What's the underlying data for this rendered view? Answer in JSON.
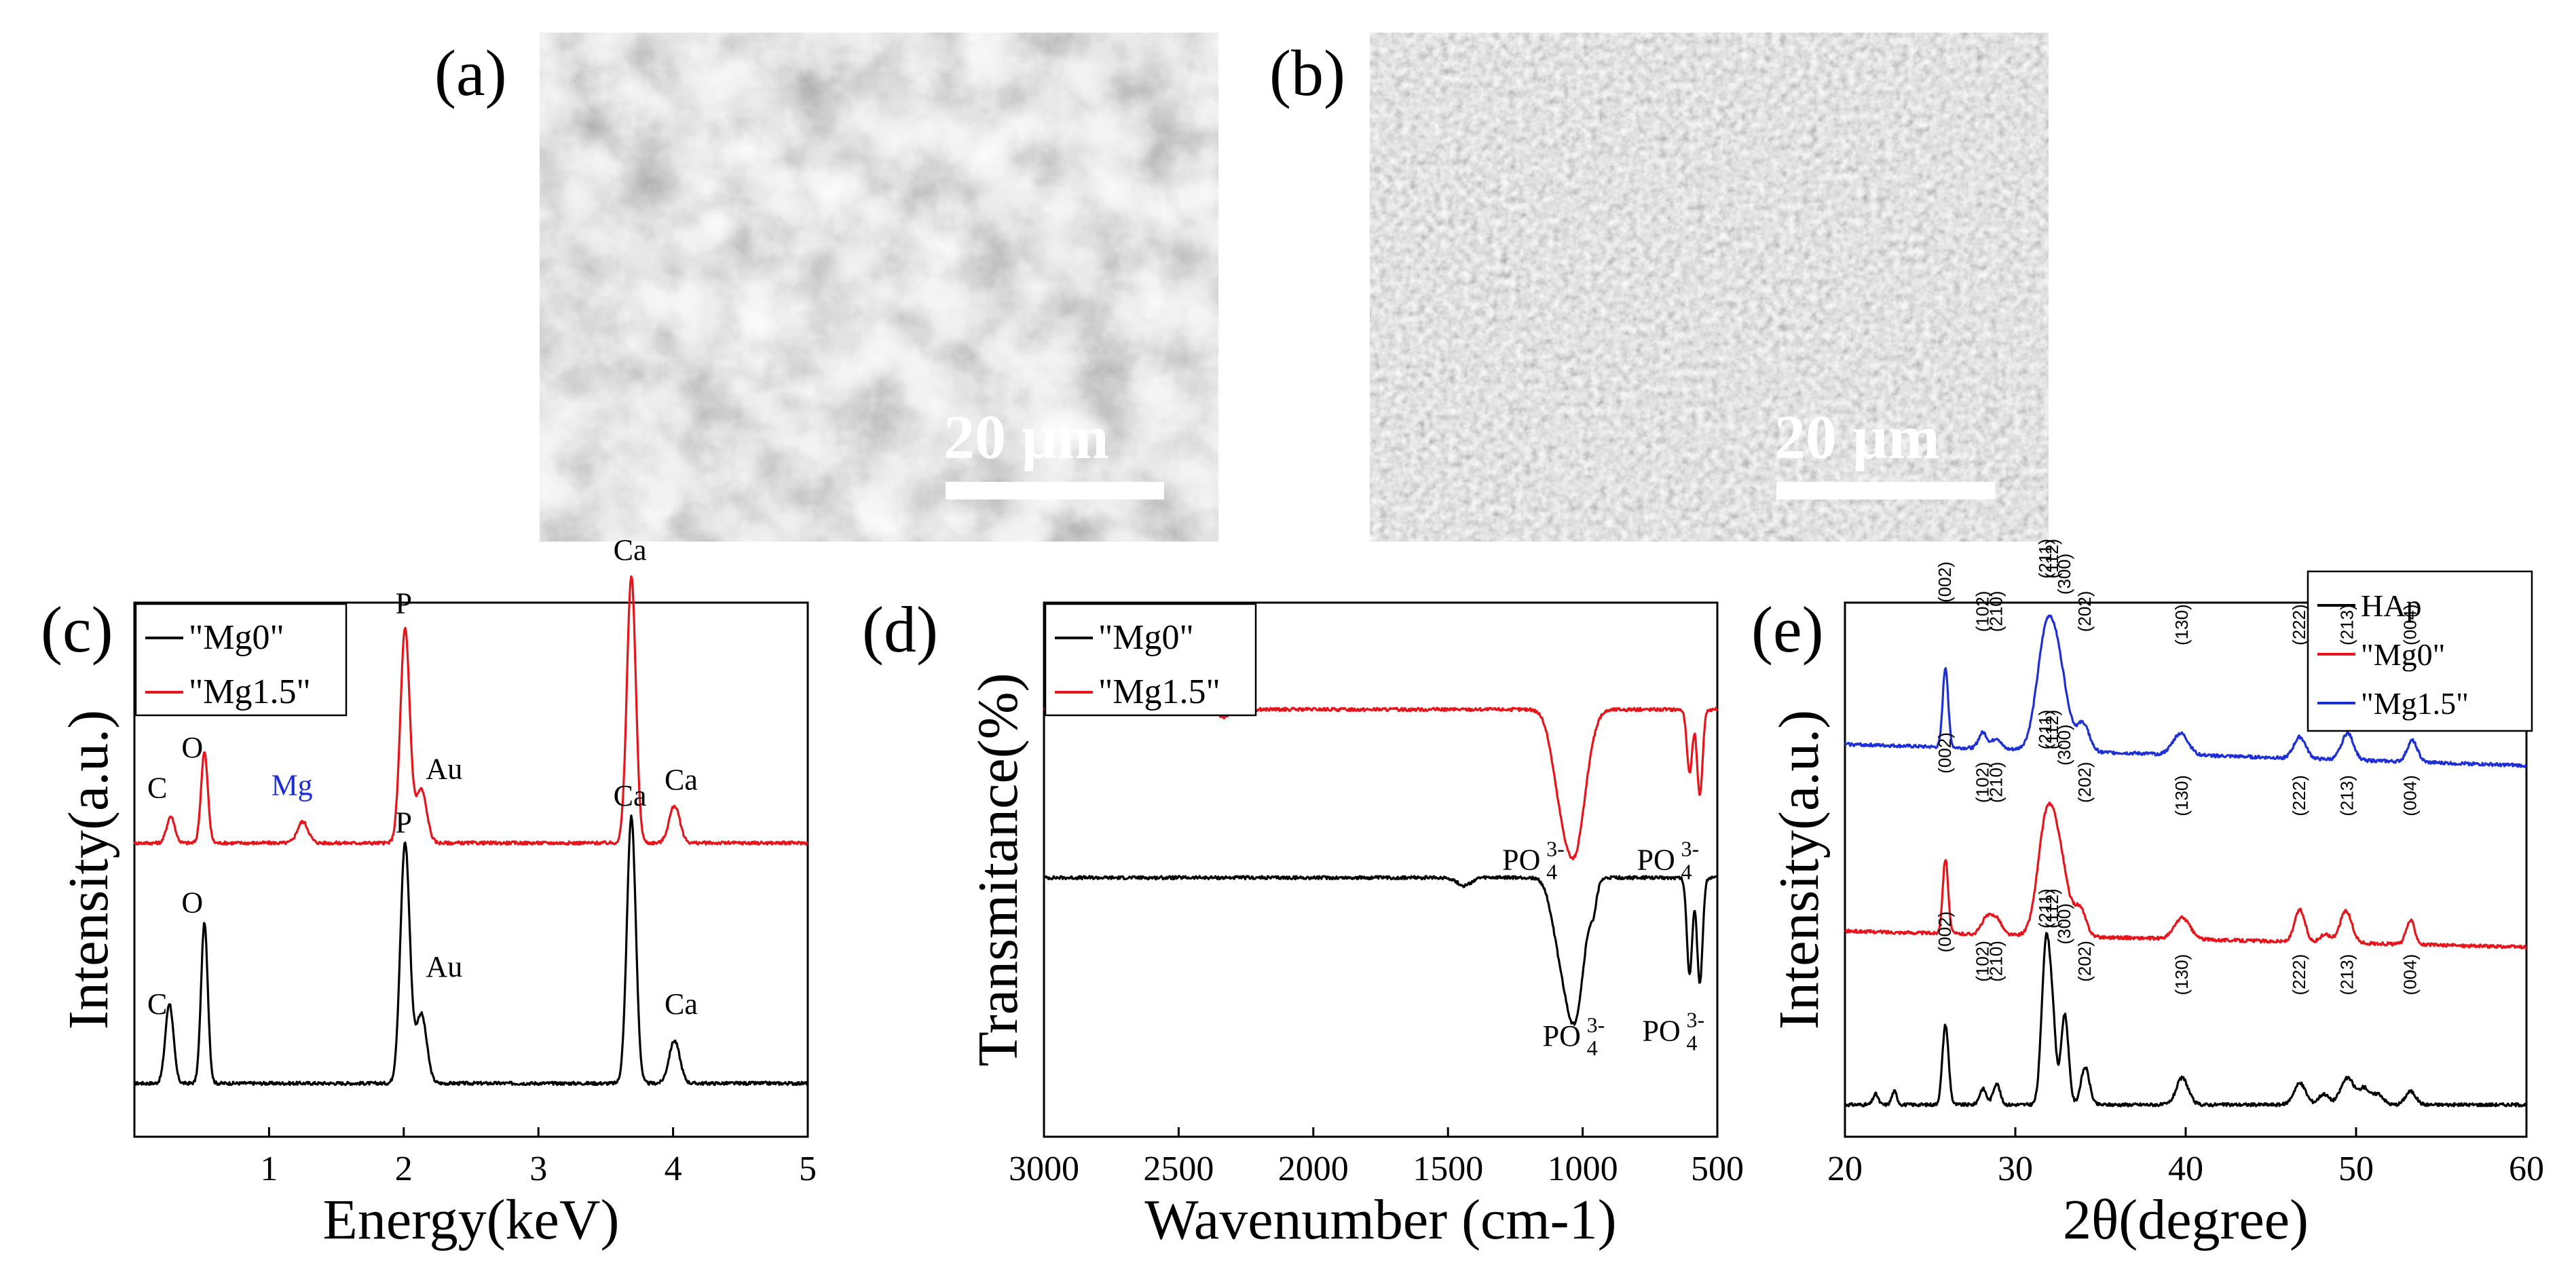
{
  "panels": {
    "a": {
      "label": "(a)",
      "scale_bar": "20 μm"
    },
    "b": {
      "label": "(b)",
      "scale_bar": "20 μm"
    }
  },
  "colors": {
    "mg0": "#000000",
    "mg15": "#e8141b",
    "hap": "#000000",
    "blue": "#1f2fd6"
  },
  "chart_data": [
    {
      "id": "c",
      "type": "line",
      "panel_label": "(c)",
      "xlabel": "Energy(keV)",
      "ylabel": "Intensity(a.u.)",
      "xlim": [
        0,
        5
      ],
      "xticks": [
        1,
        2,
        3,
        4,
        5
      ],
      "legend": {
        "position": "top-left",
        "entries": [
          "\"Mg0\"",
          "\"Mg1.5\""
        ]
      },
      "series": [
        {
          "name": "\"Mg0\"",
          "color": "#000000",
          "baseline": 0.1,
          "peaks": [
            [
              0.26,
              0.15,
              0.03
            ],
            [
              0.52,
              0.3,
              0.025
            ],
            [
              2.01,
              0.45,
              0.035
            ],
            [
              2.13,
              0.13,
              0.04
            ],
            [
              3.69,
              0.5,
              0.033
            ],
            [
              4.01,
              0.08,
              0.04
            ]
          ]
        },
        {
          "name": "\"Mg1.5\"",
          "color": "#e8141b",
          "baseline": 0.55,
          "peaks": [
            [
              0.27,
              0.05,
              0.03
            ],
            [
              0.52,
              0.17,
              0.025
            ],
            [
              1.25,
              0.04,
              0.04
            ],
            [
              2.01,
              0.4,
              0.035
            ],
            [
              2.13,
              0.1,
              0.04
            ],
            [
              3.69,
              0.5,
              0.033
            ],
            [
              4.01,
              0.07,
              0.04
            ]
          ]
        }
      ],
      "annotations": [
        {
          "text": "C",
          "x": 0.17,
          "y": 0.635,
          "color": "#000000"
        },
        {
          "text": "O",
          "x": 0.43,
          "y": 0.71,
          "color": "#000000"
        },
        {
          "text": "Mg",
          "x": 1.17,
          "y": 0.64,
          "color": "#1f2fd6"
        },
        {
          "text": "P",
          "x": 2.0,
          "y": 0.98,
          "color": "#000000"
        },
        {
          "text": "Au",
          "x": 2.3,
          "y": 0.67,
          "color": "#000000"
        },
        {
          "text": "Ca",
          "x": 3.68,
          "y": 1.08,
          "color": "#000000"
        },
        {
          "text": "Ca",
          "x": 4.06,
          "y": 0.65,
          "color": "#000000"
        },
        {
          "text": "C",
          "x": 0.17,
          "y": 0.23,
          "color": "#000000"
        },
        {
          "text": "O",
          "x": 0.43,
          "y": 0.42,
          "color": "#000000"
        },
        {
          "text": "P",
          "x": 2.0,
          "y": 0.57,
          "color": "#000000"
        },
        {
          "text": "Au",
          "x": 2.3,
          "y": 0.3,
          "color": "#000000"
        },
        {
          "text": "Ca",
          "x": 3.68,
          "y": 0.62,
          "color": "#000000"
        },
        {
          "text": "Ca",
          "x": 4.06,
          "y": 0.23,
          "color": "#000000"
        }
      ]
    },
    {
      "id": "d",
      "type": "line",
      "panel_label": "(d)",
      "xlabel": "Wavenumber (cm-1)",
      "ylabel": "Transmitance(%)",
      "xlim": [
        3000,
        500
      ],
      "xticks": [
        3000,
        2500,
        2000,
        1500,
        1000,
        500
      ],
      "legend": {
        "position": "top-left",
        "entries": [
          "\"Mg0\"",
          "\"Mg1.5\""
        ]
      },
      "series": [
        {
          "name": "\"Mg0\"",
          "color": "#000000",
          "baseline": 0.485,
          "dips": [
            [
              1030,
              0.26,
              35
            ],
            [
              1090,
              0.09,
              30
            ],
            [
              960,
              0.04,
              12
            ],
            [
              603,
              0.18,
              10
            ],
            [
              565,
              0.2,
              10
            ],
            [
              1440,
              0.015,
              25
            ]
          ]
        },
        {
          "name": "\"Mg1.5\"",
          "color": "#e8141b",
          "baseline": 0.8,
          "dips": [
            [
              1030,
              0.26,
              40
            ],
            [
              1090,
              0.09,
              32
            ],
            [
              603,
              0.12,
              10
            ],
            [
              565,
              0.16,
              10
            ],
            [
              2330,
              0.015,
              20
            ]
          ]
        }
      ],
      "annotations": [
        {
          "text": "PO",
          "sub": "4",
          "sup": "3-",
          "x": 1160,
          "y": 0.5
        },
        {
          "text": "PO",
          "sub": "4",
          "sup": "3-",
          "x": 660,
          "y": 0.5
        },
        {
          "text": "PO",
          "sub": "4",
          "sup": "3-",
          "x": 1010,
          "y": 0.17
        },
        {
          "text": "PO",
          "sub": "4",
          "sup": "3-",
          "x": 640,
          "y": 0.18
        }
      ]
    },
    {
      "id": "e",
      "type": "line",
      "panel_label": "(e)",
      "xlabel": "2θ(degree)",
      "ylabel": "Intensity(a.u.)",
      "xlim": [
        20,
        60
      ],
      "xticks": [
        20,
        30,
        40,
        50,
        60
      ],
      "legend": {
        "position": "top-right",
        "entries": [
          "HAp",
          "\"Mg0\"",
          "\"Mg1.5\""
        ]
      },
      "hkl_positions": {
        "(002)": 25.9,
        "(102)": 28.1,
        "(210)": 28.9,
        "(211)": 31.8,
        "(112)": 32.2,
        "(300)": 32.9,
        "(202)": 34.1,
        "(130)": 39.8,
        "(222)": 46.7,
        "(213)": 49.5,
        "(004)": 53.2
      },
      "series": [
        {
          "name": "HAp",
          "color": "#000000",
          "baseline": 0.06,
          "tilt": 0.0,
          "peaks": [
            [
              21.8,
              0.02,
              0.15
            ],
            [
              22.9,
              0.025,
              0.15
            ],
            [
              25.9,
              0.15,
              0.18
            ],
            [
              28.1,
              0.03,
              0.2
            ],
            [
              28.9,
              0.04,
              0.2
            ],
            [
              31.8,
              0.3,
              0.25
            ],
            [
              32.2,
              0.12,
              0.2
            ],
            [
              32.9,
              0.17,
              0.22
            ],
            [
              34.1,
              0.07,
              0.25
            ],
            [
              39.8,
              0.05,
              0.35
            ],
            [
              46.7,
              0.04,
              0.35
            ],
            [
              48.1,
              0.02,
              0.3
            ],
            [
              49.5,
              0.05,
              0.4
            ],
            [
              50.5,
              0.03,
              0.3
            ],
            [
              51.3,
              0.02,
              0.3
            ],
            [
              53.2,
              0.025,
              0.3
            ]
          ]
        },
        {
          "name": "\"Mg0\"",
          "color": "#e8141b",
          "baseline": 0.385,
          "tilt": -0.03,
          "peaks": [
            [
              25.9,
              0.14,
              0.16
            ],
            [
              28.3,
              0.03,
              0.3
            ],
            [
              28.9,
              0.03,
              0.3
            ],
            [
              31.8,
              0.2,
              0.5
            ],
            [
              32.6,
              0.13,
              0.5
            ],
            [
              33.8,
              0.05,
              0.35
            ],
            [
              39.8,
              0.04,
              0.45
            ],
            [
              46.7,
              0.06,
              0.3
            ],
            [
              49.4,
              0.06,
              0.35
            ],
            [
              53.2,
              0.045,
              0.25
            ],
            [
              48.2,
              0.015,
              0.3
            ]
          ]
        },
        {
          "name": "\"Mg1.5\"",
          "color": "#1f2fd6",
          "baseline": 0.735,
          "tilt": -0.04,
          "peaks": [
            [
              25.9,
              0.15,
              0.16
            ],
            [
              28.1,
              0.03,
              0.25
            ],
            [
              28.9,
              0.02,
              0.25
            ],
            [
              31.8,
              0.2,
              0.55
            ],
            [
              32.6,
              0.12,
              0.55
            ],
            [
              34.0,
              0.05,
              0.35
            ],
            [
              39.7,
              0.04,
              0.45
            ],
            [
              46.7,
              0.04,
              0.35
            ],
            [
              49.5,
              0.05,
              0.35
            ],
            [
              53.3,
              0.04,
              0.3
            ]
          ]
        }
      ]
    }
  ]
}
